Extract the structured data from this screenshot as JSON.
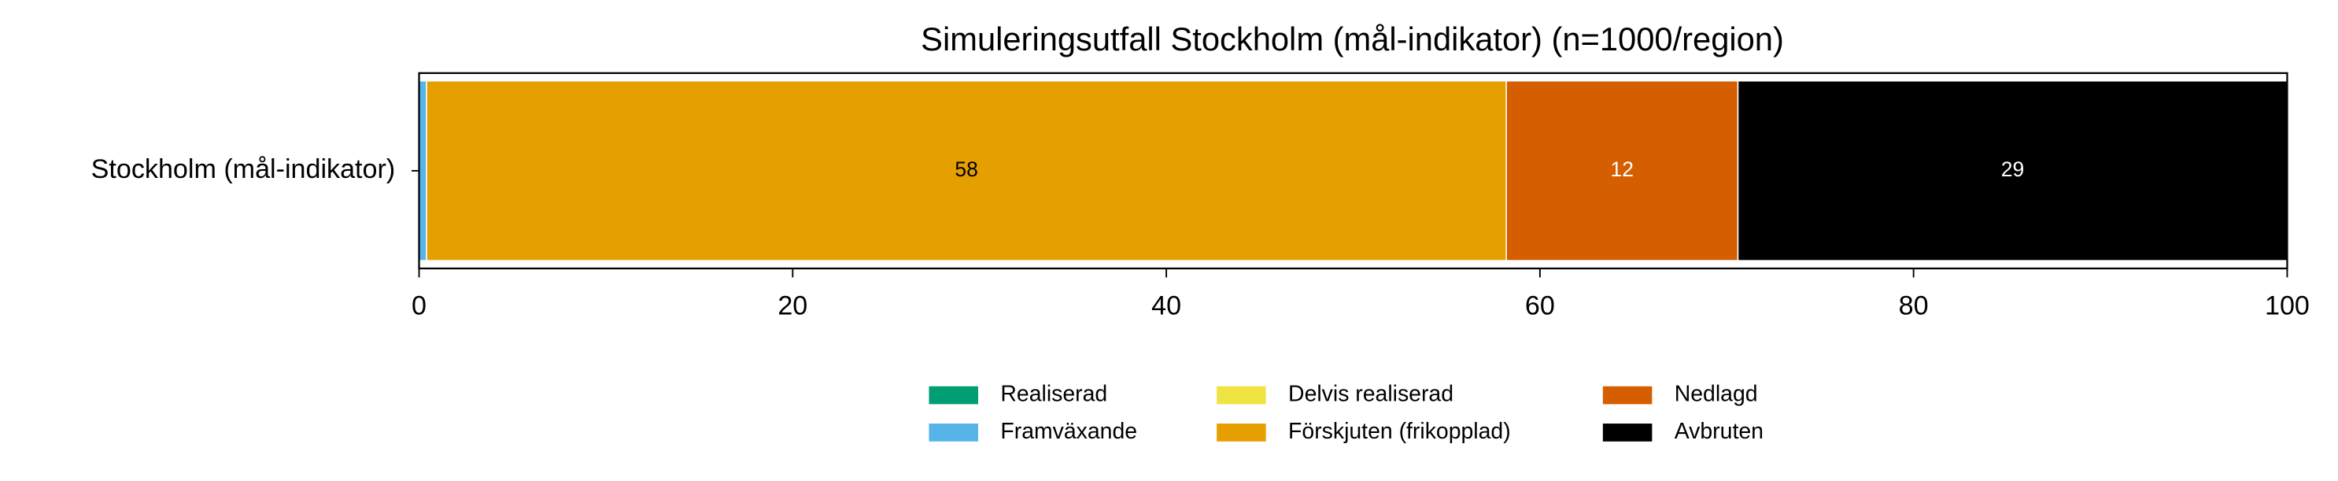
{
  "chart_data": {
    "type": "stacked-barh",
    "title": "Simuleringsutfall Stockholm (mål-indikator) (n=1000/region)",
    "categories": [
      "Stockholm (mål-indikator)"
    ],
    "series": [
      {
        "name": "Realiserad",
        "color": "#009E73",
        "values": [
          0
        ]
      },
      {
        "name": "Framväxande",
        "color": "#56B4E9",
        "values": [
          0.4
        ]
      },
      {
        "name": "Delvis realiserad",
        "color": "#F0E442",
        "values": [
          0
        ]
      },
      {
        "name": "Förskjuten (frikopplad)",
        "color": "#E69F00",
        "values": [
          57.8
        ],
        "value_labels": [
          "58"
        ],
        "label_color": "#000000"
      },
      {
        "name": "Nedlagd",
        "color": "#D55E00",
        "values": [
          12.4
        ],
        "value_labels": [
          "12"
        ],
        "label_color": "#ffffff"
      },
      {
        "name": "Avbruten",
        "color": "#000000",
        "values": [
          29.4
        ],
        "value_labels": [
          "29"
        ],
        "label_color": "#ffffff"
      }
    ],
    "xlim": [
      0,
      100
    ],
    "xticks": [
      0,
      20,
      40,
      60,
      80,
      100
    ],
    "legend": "lower center",
    "legend_columns": 3
  }
}
